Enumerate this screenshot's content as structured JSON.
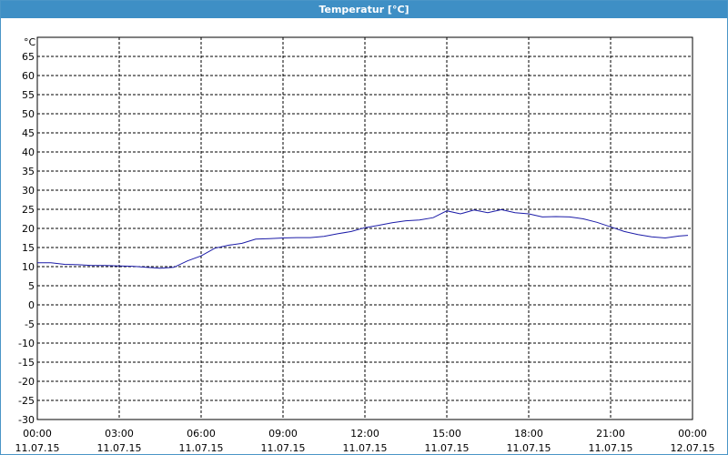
{
  "window": {
    "title": "Temperatur [°C]"
  },
  "colors": {
    "title_bar": "#3e8fc5",
    "series": "#1c1ca8",
    "grid": "#000000"
  },
  "chart_data": {
    "type": "line",
    "title": "Temperatur [°C]",
    "ylabel": "°C",
    "xlabel": "",
    "ylim": [
      -30,
      70
    ],
    "y_ticks": [
      -30,
      -25,
      -20,
      -15,
      -10,
      -5,
      0,
      5,
      10,
      15,
      20,
      25,
      30,
      35,
      40,
      45,
      50,
      55,
      60,
      65
    ],
    "x_ticks": [
      {
        "time": "00:00",
        "date": "11.07.15"
      },
      {
        "time": "03:00",
        "date": "11.07.15"
      },
      {
        "time": "06:00",
        "date": "11.07.15"
      },
      {
        "time": "09:00",
        "date": "11.07.15"
      },
      {
        "time": "12:00",
        "date": "11.07.15"
      },
      {
        "time": "15:00",
        "date": "11.07.15"
      },
      {
        "time": "18:00",
        "date": "11.07.15"
      },
      {
        "time": "21:00",
        "date": "11.07.15"
      },
      {
        "time": "00:00",
        "date": "12.07.15"
      }
    ],
    "grid": true,
    "grid_style": "dashed",
    "series": [
      {
        "x": [
          "11.07.15 00:00",
          "11.07.15 00:30",
          "11.07.15 01:00",
          "11.07.15 01:30",
          "11.07.15 02:00",
          "11.07.15 02:30",
          "11.07.15 03:00",
          "11.07.15 03:30",
          "11.07.15 04:00",
          "11.07.15 04:30",
          "11.07.15 05:00",
          "11.07.15 05:30",
          "11.07.15 06:00",
          "11.07.15 06:30",
          "11.07.15 07:00",
          "11.07.15 07:30",
          "11.07.15 08:00",
          "11.07.15 08:30",
          "11.07.15 09:00",
          "11.07.15 09:30",
          "11.07.15 10:00",
          "11.07.15 10:30",
          "11.07.15 11:00",
          "11.07.15 11:30",
          "11.07.15 12:00",
          "11.07.15 12:30",
          "11.07.15 13:00",
          "11.07.15 13:30",
          "11.07.15 14:00",
          "11.07.15 14:30",
          "11.07.15 15:00",
          "11.07.15 15:30",
          "11.07.15 16:00",
          "11.07.15 16:30",
          "11.07.15 17:00",
          "11.07.15 17:30",
          "11.07.15 18:00",
          "11.07.15 18:30",
          "11.07.15 19:00",
          "11.07.15 19:30",
          "11.07.15 20:00",
          "11.07.15 20:30",
          "11.07.15 21:00",
          "11.07.15 21:30",
          "11.07.15 22:00",
          "11.07.15 22:30",
          "11.07.15 23:00",
          "11.07.15 23:30",
          "11.07.15 23:50"
        ],
        "y": [
          11.0,
          11.0,
          10.6,
          10.5,
          10.3,
          10.3,
          10.2,
          10.1,
          9.8,
          9.6,
          9.8,
          11.5,
          12.8,
          14.8,
          15.6,
          16.1,
          17.2,
          17.3,
          17.5,
          17.6,
          17.6,
          17.9,
          18.6,
          19.2,
          20.2,
          20.8,
          21.5,
          22.0,
          22.2,
          22.8,
          24.6,
          23.8,
          24.8,
          24.1,
          24.9,
          24.1,
          23.8,
          23.0,
          23.1,
          23.0,
          22.5,
          21.6,
          20.4,
          19.2,
          18.4,
          17.8,
          17.5,
          18.0,
          18.2
        ]
      }
    ]
  }
}
